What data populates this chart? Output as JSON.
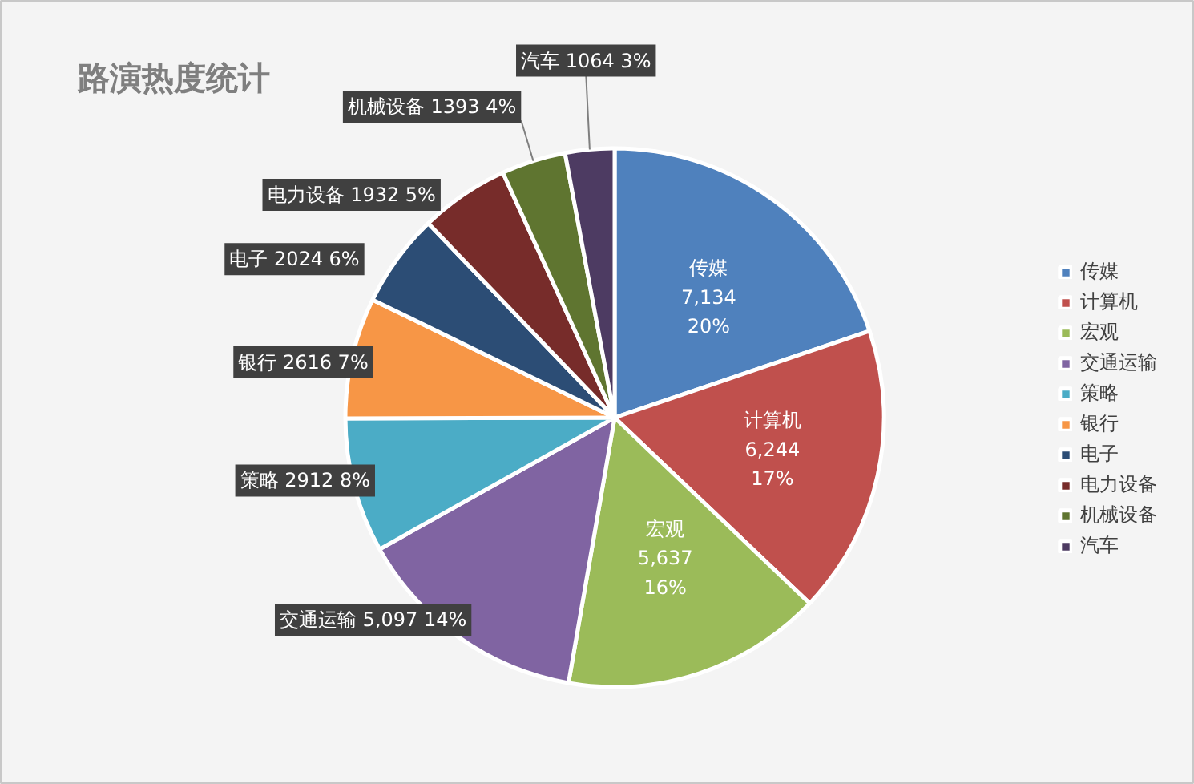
{
  "chart_data": {
    "type": "pie",
    "title": "路演热度统计",
    "categories": [
      "传媒",
      "计算机",
      "宏观",
      "交通运输",
      "策略",
      "银行",
      "电子",
      "电力设备",
      "机械设备",
      "汽车"
    ],
    "values": [
      7134,
      6244,
      5637,
      5097,
      2912,
      2616,
      2024,
      1932,
      1393,
      1064
    ],
    "value_labels": [
      "7,134 20%",
      "6,244 17%",
      "5,637 16%",
      "5,097 14%",
      "2912 8%",
      "2616 7%",
      "2024 6%",
      "1932 5%",
      "1393 4%",
      "1064 3%"
    ],
    "colors": [
      "#4f81bd",
      "#c0504d",
      "#9bbb59",
      "#8064a2",
      "#4bacc6",
      "#f79646",
      "#2c4d75",
      "#772c2a",
      "#5f7530",
      "#4d3b62"
    ],
    "legend": "right"
  }
}
